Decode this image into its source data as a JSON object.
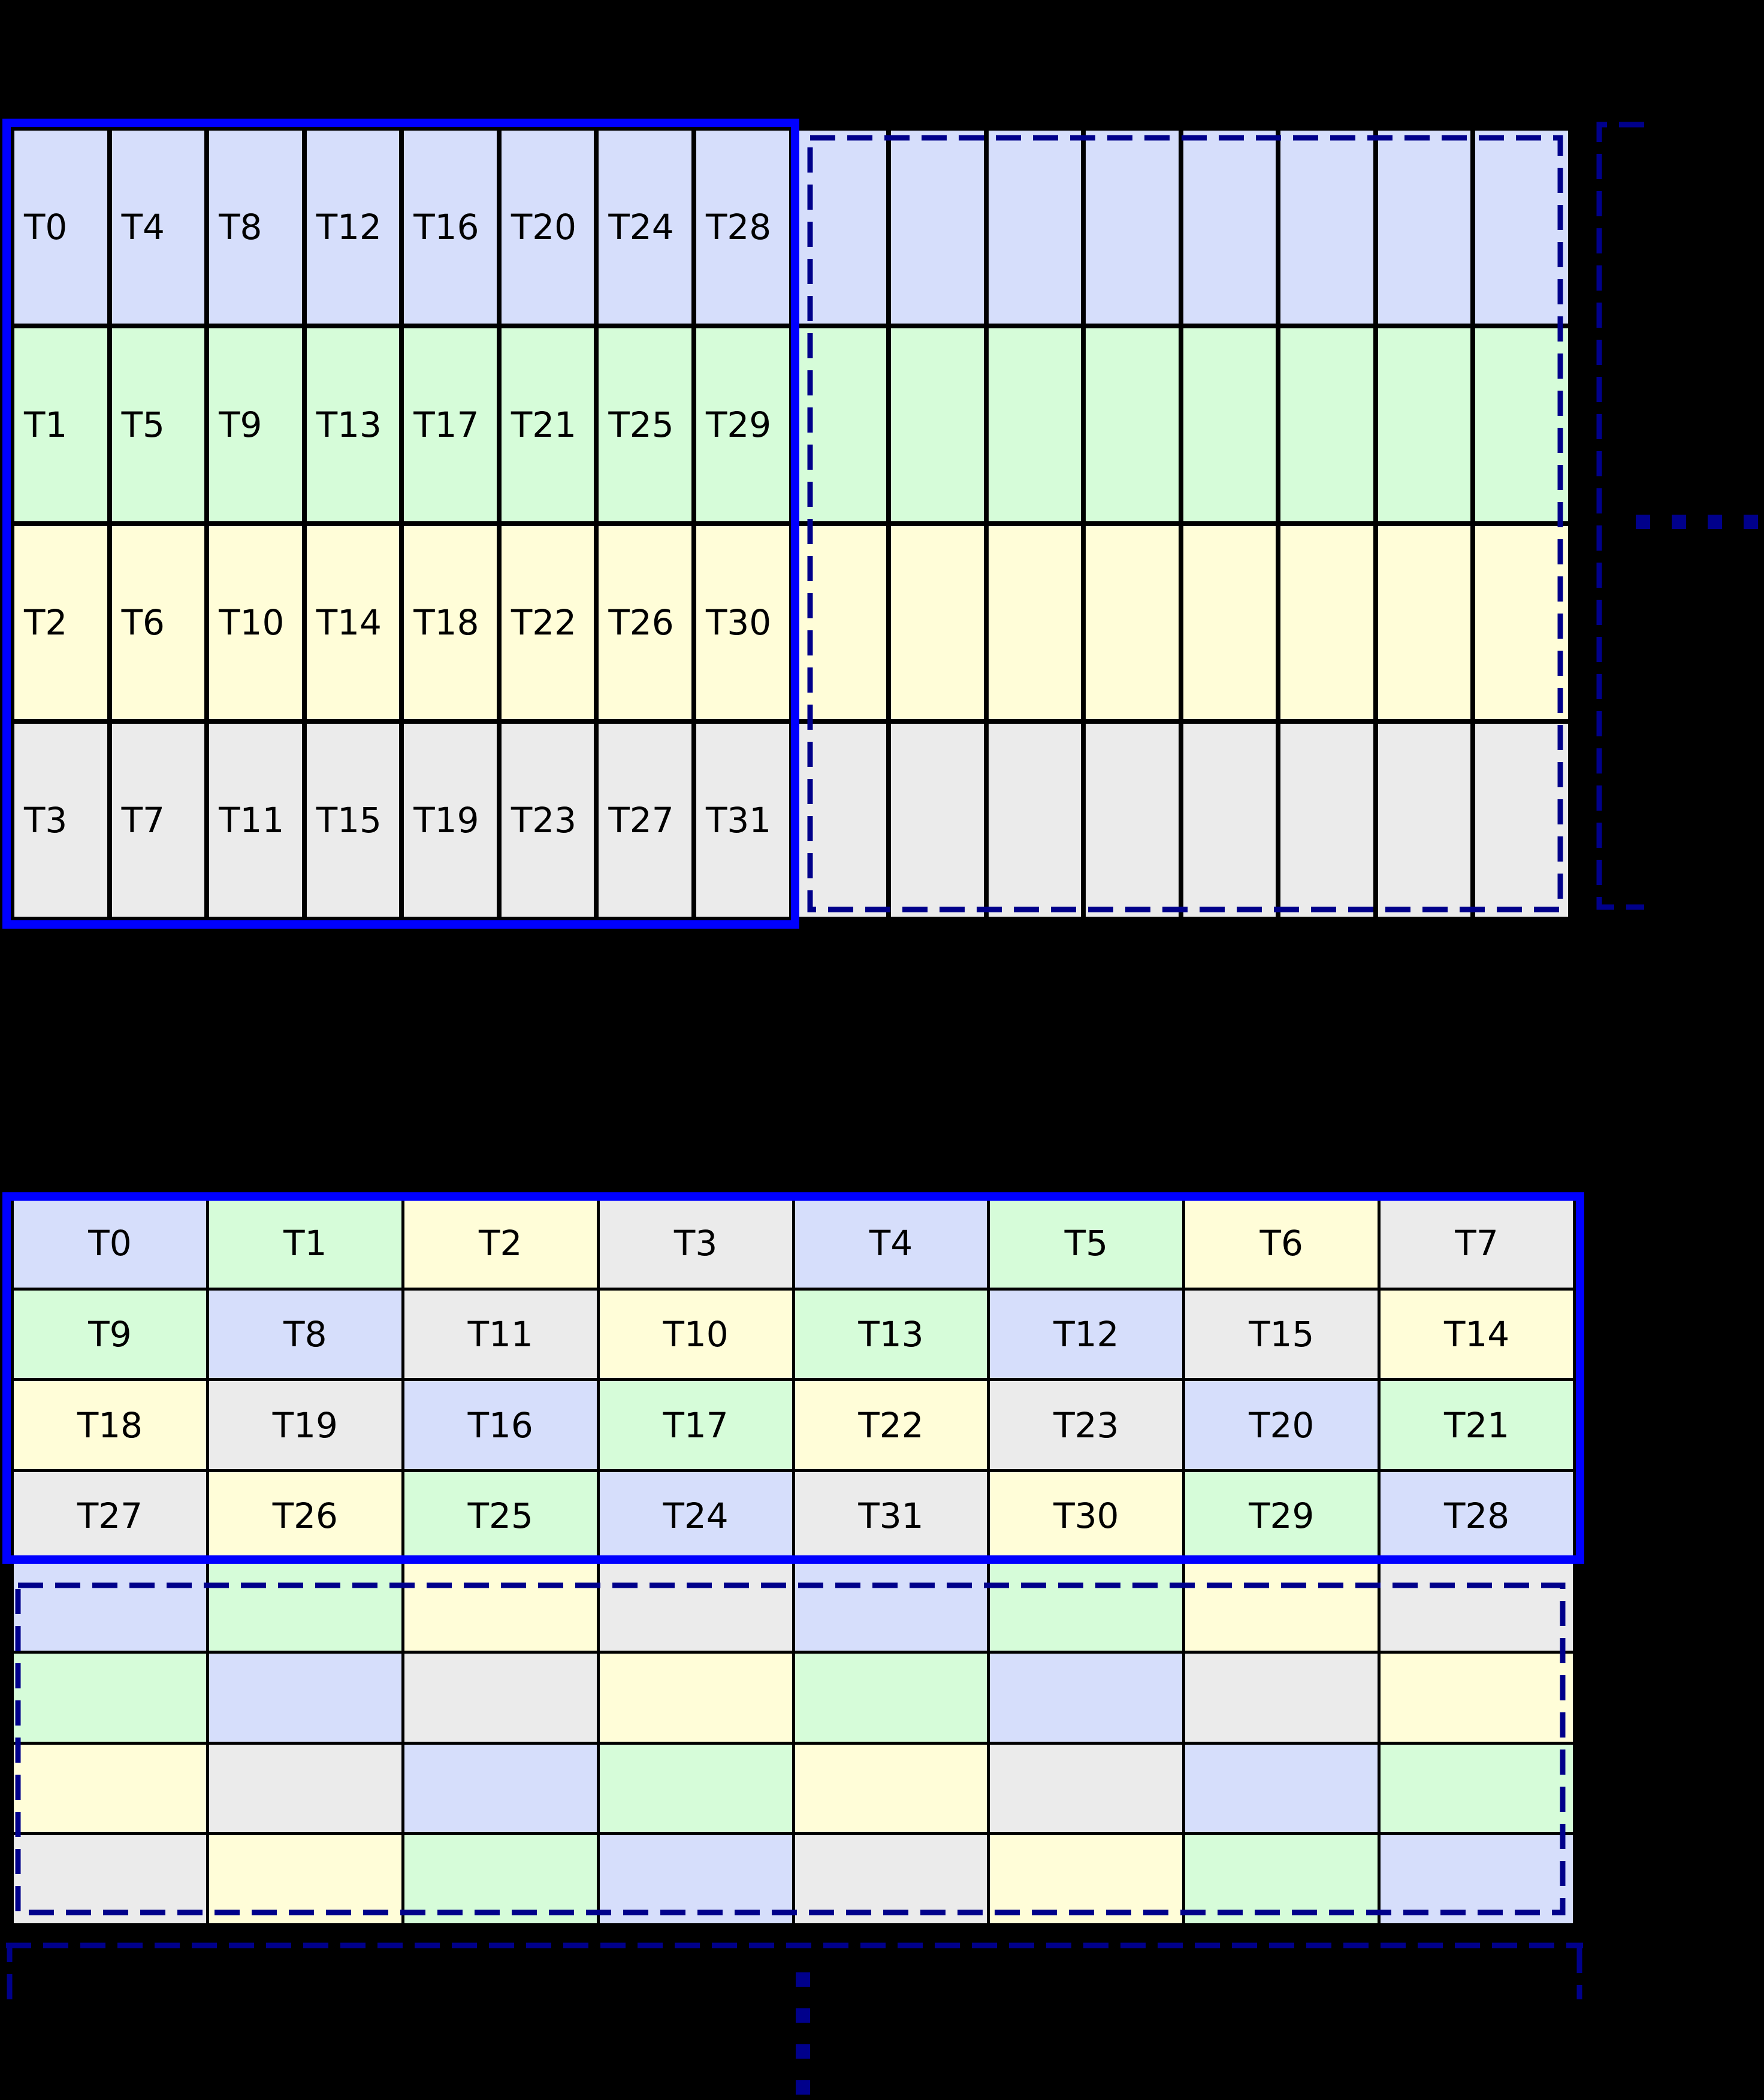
{
  "figure": {
    "background": "#000000",
    "cell_palette": {
      "lavender": "#d6defb",
      "green": "#d6fcd9",
      "yellow": "#fffdd8",
      "gray": "#ebebeb"
    },
    "border_colors": {
      "solid_highlight": "#0000ff",
      "dashed_annotation": "#00008b",
      "cell_grid": "#000000"
    },
    "label_color": "#000000"
  },
  "top_grid": {
    "rows_count": 4,
    "labeled_columns": 8,
    "unlabeled_columns": 8,
    "row_color_keys": [
      "lavender",
      "green",
      "yellow",
      "gray"
    ],
    "rows": [
      {
        "labels": [
          "T0",
          "T4",
          "T8",
          "T12",
          "T16",
          "T20",
          "T24",
          "T28"
        ]
      },
      {
        "labels": [
          "T1",
          "T5",
          "T9",
          "T13",
          "T17",
          "T21",
          "T25",
          "T29"
        ]
      },
      {
        "labels": [
          "T2",
          "T6",
          "T10",
          "T14",
          "T18",
          "T22",
          "T26",
          "T30"
        ]
      },
      {
        "labels": [
          "T3",
          "T7",
          "T11",
          "T15",
          "T19",
          "T23",
          "T27",
          "T31"
        ]
      }
    ]
  },
  "bottom_grid": {
    "columns_count": 8,
    "labeled_rows_count": 4,
    "unlabeled_rows_count": 4,
    "labeled_rows": [
      {
        "cells": [
          {
            "label": "T0",
            "color": "lavender"
          },
          {
            "label": "T1",
            "color": "green"
          },
          {
            "label": "T2",
            "color": "yellow"
          },
          {
            "label": "T3",
            "color": "gray"
          },
          {
            "label": "T4",
            "color": "lavender"
          },
          {
            "label": "T5",
            "color": "green"
          },
          {
            "label": "T6",
            "color": "yellow"
          },
          {
            "label": "T7",
            "color": "gray"
          }
        ]
      },
      {
        "cells": [
          {
            "label": "T9",
            "color": "green"
          },
          {
            "label": "T8",
            "color": "lavender"
          },
          {
            "label": "T11",
            "color": "gray"
          },
          {
            "label": "T10",
            "color": "yellow"
          },
          {
            "label": "T13",
            "color": "green"
          },
          {
            "label": "T12",
            "color": "lavender"
          },
          {
            "label": "T15",
            "color": "gray"
          },
          {
            "label": "T14",
            "color": "yellow"
          }
        ]
      },
      {
        "cells": [
          {
            "label": "T18",
            "color": "yellow"
          },
          {
            "label": "T19",
            "color": "gray"
          },
          {
            "label": "T16",
            "color": "lavender"
          },
          {
            "label": "T17",
            "color": "green"
          },
          {
            "label": "T22",
            "color": "yellow"
          },
          {
            "label": "T23",
            "color": "gray"
          },
          {
            "label": "T20",
            "color": "lavender"
          },
          {
            "label": "T21",
            "color": "green"
          }
        ]
      },
      {
        "cells": [
          {
            "label": "T27",
            "color": "gray"
          },
          {
            "label": "T26",
            "color": "yellow"
          },
          {
            "label": "T25",
            "color": "green"
          },
          {
            "label": "T24",
            "color": "lavender"
          },
          {
            "label": "T31",
            "color": "gray"
          },
          {
            "label": "T30",
            "color": "yellow"
          },
          {
            "label": "T29",
            "color": "green"
          },
          {
            "label": "T28",
            "color": "lavender"
          }
        ]
      }
    ],
    "unlabeled_rows": [
      {
        "colors": [
          "lavender",
          "green",
          "yellow",
          "gray",
          "lavender",
          "green",
          "yellow",
          "gray"
        ]
      },
      {
        "colors": [
          "green",
          "lavender",
          "gray",
          "yellow",
          "green",
          "lavender",
          "gray",
          "yellow"
        ]
      },
      {
        "colors": [
          "yellow",
          "gray",
          "lavender",
          "green",
          "yellow",
          "gray",
          "lavender",
          "green"
        ]
      },
      {
        "colors": [
          "gray",
          "yellow",
          "green",
          "lavender",
          "gray",
          "yellow",
          "green",
          "lavender"
        ]
      }
    ]
  },
  "annotations": {
    "right_ellipsis_dash_count": 4,
    "bottom_ellipsis_dash_count": 4
  }
}
